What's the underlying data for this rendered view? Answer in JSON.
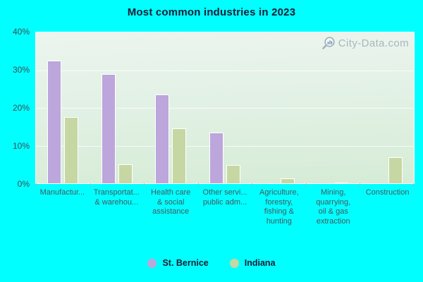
{
  "title": "Most common industries in 2023",
  "watermark": {
    "text": "City-Data.com"
  },
  "chart_data": {
    "type": "bar",
    "title": "Most common industries in 2023",
    "categories": [
      "Manufactur...",
      "Transportat... & warehou...",
      "Health care & social assistance",
      "Other servi... public adm...",
      "Agriculture, forestry, fishing & hunting",
      "Mining, quarrying, oil & gas extraction",
      "Construction"
    ],
    "category_display_lines": [
      [
        "Manufactur..."
      ],
      [
        "Transportat...",
        "& warehou..."
      ],
      [
        "Health care",
        "& social",
        "assistance"
      ],
      [
        "Other servi...",
        "public adm..."
      ],
      [
        "Agriculture,",
        "forestry,",
        "fishing &",
        "hunting"
      ],
      [
        "Mining,",
        "quarrying,",
        "oil & gas",
        "extraction"
      ],
      [
        "Construction"
      ]
    ],
    "series": [
      {
        "name": "St. Bernice",
        "color": "#bca6db",
        "values": [
          32.5,
          29.0,
          23.5,
          13.4,
          0,
          0,
          0
        ]
      },
      {
        "name": "Indiana",
        "color": "#c6d7a3",
        "values": [
          17.6,
          5.1,
          14.5,
          4.8,
          1.3,
          0.2,
          7.0
        ]
      }
    ],
    "xlabel": "",
    "ylabel": "",
    "ylim": [
      0,
      40
    ],
    "y_tick_labels": [
      "0%",
      "10%",
      "20%",
      "30%",
      "40%"
    ],
    "grid": true,
    "legend_position": "bottom"
  },
  "colors": {
    "page_background": "#00ffff",
    "st_bernice_bar": "#bca6db",
    "indiana_bar": "#c6d7a3",
    "title_text": "#1a1a33",
    "axis_text": "#3e4c54",
    "watermark_text": "#a9b5bf"
  }
}
